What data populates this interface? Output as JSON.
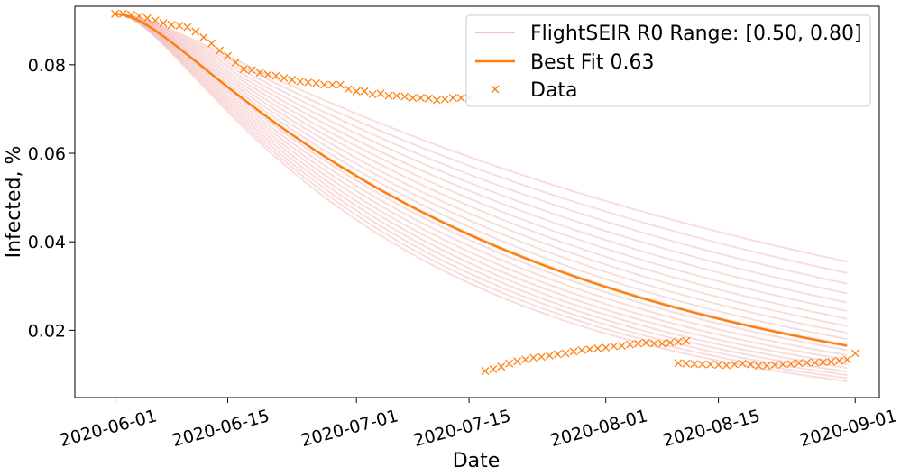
{
  "chart_data": {
    "type": "line",
    "title": "",
    "xlabel": "Date",
    "ylabel": "Infected, %",
    "x_ticks": [
      "2020-06-01",
      "2020-06-15",
      "2020-07-01",
      "2020-07-15",
      "2020-08-01",
      "2020-08-15",
      "2020-09-01"
    ],
    "x_range": [
      "2020-05-27",
      "2020-09-04"
    ],
    "y_ticks": [
      "0.02",
      "0.04",
      "0.06",
      "0.08"
    ],
    "y_tick_values": [
      0.02,
      0.04,
      0.06,
      0.08
    ],
    "ylim": [
      0.0048,
      0.0932
    ],
    "grid": false,
    "legend": {
      "placement": "top-right",
      "entries": [
        {
          "label": "FlightSEIR R0 Range: [0.50, 0.80]",
          "style": "band-lines"
        },
        {
          "label": "Best Fit 0.63",
          "style": "line"
        },
        {
          "label": "Data",
          "style": "x-marker"
        }
      ]
    },
    "colors": {
      "best_fit": "#ff7f0e",
      "range": "#f4c0c0",
      "data": "#ff7f0e"
    },
    "model": {
      "start_date": "2020-06-01",
      "end_date": "2020-08-31",
      "start_value": 0.0915,
      "r0_min": 0.5,
      "r0_max": 0.8,
      "n_range_lines": 20,
      "best_fit_r0": 0.63,
      "end_values": {
        "r0_min": 0.0085,
        "r0_max": 0.0355,
        "best_fit": 0.0165
      }
    },
    "series": [
      {
        "name": "Data",
        "segments": [
          {
            "start_date": "2020-06-01",
            "values": [
              0.0915,
              0.0915,
              0.0913,
              0.091,
              0.0905,
              0.09,
              0.0894,
              0.089,
              0.0888,
              0.0885,
              0.0875,
              0.0862,
              0.0848,
              0.0832,
              0.082,
              0.0805,
              0.079,
              0.0788,
              0.0782,
              0.0778,
              0.0775,
              0.077,
              0.0766,
              0.0762,
              0.076,
              0.0758,
              0.0755,
              0.0755,
              0.0755,
              0.0745,
              0.074,
              0.074,
              0.0733,
              0.0735,
              0.073,
              0.073,
              0.0728,
              0.0725,
              0.0725,
              0.0724,
              0.072,
              0.0722,
              0.0725,
              0.0725,
              0.0725
            ]
          },
          {
            "start_date": "2020-07-17",
            "values": [
              0.0108,
              0.0112,
              0.0118,
              0.0125,
              0.013,
              0.0134,
              0.0138,
              0.014,
              0.0143,
              0.0146,
              0.0148,
              0.0152,
              0.0155,
              0.0157,
              0.0159,
              0.0161,
              0.0164,
              0.0165,
              0.0168,
              0.017,
              0.0172,
              0.017,
              0.017,
              0.0172,
              0.0174,
              0.0176
            ]
          },
          {
            "start_date": "2020-08-10",
            "values": [
              0.0126,
              0.0125,
              0.0124,
              0.0123,
              0.0123,
              0.0122,
              0.0121,
              0.0123,
              0.0125,
              0.0123,
              0.012,
              0.012,
              0.0122,
              0.0123,
              0.0124,
              0.0126,
              0.0127,
              0.0127,
              0.0128,
              0.0129,
              0.0131,
              0.0134,
              0.0148
            ]
          }
        ]
      }
    ]
  }
}
